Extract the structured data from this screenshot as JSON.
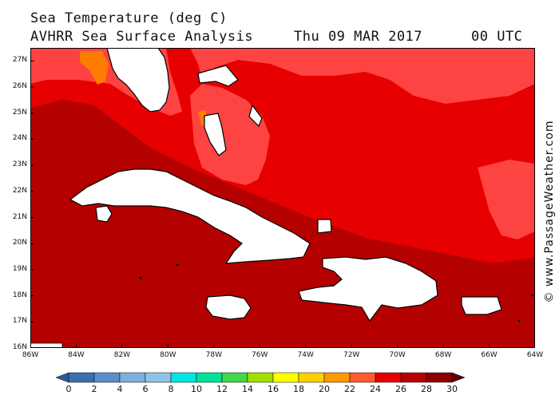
{
  "header": {
    "title": "Sea Temperature (deg C)",
    "subtitle": "AVHRR Sea Surface Analysis",
    "date": "Thu 09 MAR 2017",
    "time": "00 UTC"
  },
  "credit": "© www.PassageWeather.com",
  "map": {
    "lat_labels": [
      "27N",
      "26N",
      "25N",
      "24N",
      "23N",
      "22N",
      "21N",
      "20N",
      "19N",
      "18N",
      "17N",
      "16N"
    ],
    "lon_labels": [
      "86W",
      "84W",
      "82W",
      "80W",
      "78W",
      "76W",
      "74W",
      "72W",
      "70W",
      "68W",
      "66W",
      "64W"
    ],
    "extent": {
      "lon_min": -86,
      "lon_max": -64,
      "lat_min": 16,
      "lat_max": 27.5
    },
    "colors": {
      "sst_22_24": "#fe4343",
      "sst_24_26": "#e60000",
      "sst_26_28": "#b50000",
      "sst_20_22": "#ff7d00",
      "land": "#ffffff",
      "coast": "#000000"
    },
    "landmasses": [
      "Florida",
      "Cuba",
      "Bahamas",
      "Jamaica",
      "Hispaniola",
      "Puerto Rico",
      "Isle of Youth"
    ]
  },
  "colorbar": {
    "labels": [
      "0",
      "2",
      "4",
      "6",
      "8",
      "10",
      "12",
      "14",
      "16",
      "18",
      "20",
      "22",
      "24",
      "26",
      "28",
      "30"
    ],
    "colors": [
      "#2c5b94",
      "#3a6fb0",
      "#5a8fcb",
      "#7eb0dd",
      "#8fc4e8",
      "#00e6e6",
      "#00e19a",
      "#3fd84a",
      "#a0e000",
      "#ffff00",
      "#ffd000",
      "#ff9900",
      "#ff5c2e",
      "#e60000",
      "#b50000",
      "#8a0000",
      "#600000"
    ]
  }
}
